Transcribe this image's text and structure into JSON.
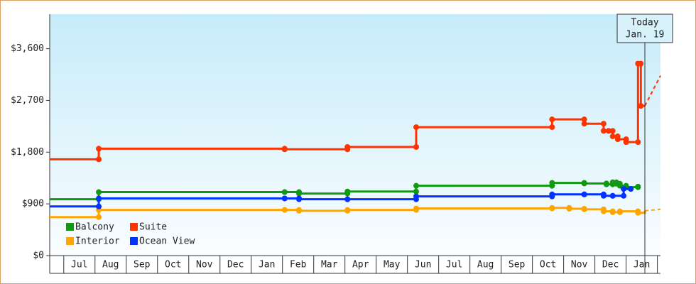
{
  "chart_data": {
    "type": "step-line",
    "today": {
      "label": "Today",
      "date": "Jan. 19",
      "x": 18.6
    },
    "xlim": [
      -0.45,
      19.1
    ],
    "xticks": [
      {
        "value": 0.5,
        "label": "Jul"
      },
      {
        "value": 1.5,
        "label": "Aug"
      },
      {
        "value": 2.5,
        "label": "Sep"
      },
      {
        "value": 3.5,
        "label": "Oct"
      },
      {
        "value": 4.5,
        "label": "Nov"
      },
      {
        "value": 5.5,
        "label": "Dec"
      },
      {
        "value": 6.5,
        "label": "Jan"
      },
      {
        "value": 7.5,
        "label": "Feb"
      },
      {
        "value": 8.5,
        "label": "Mar"
      },
      {
        "value": 9.5,
        "label": "Apr"
      },
      {
        "value": 10.5,
        "label": "May"
      },
      {
        "value": 11.5,
        "label": "Jun"
      },
      {
        "value": 12.5,
        "label": "Jul"
      },
      {
        "value": 13.5,
        "label": "Aug"
      },
      {
        "value": 14.5,
        "label": "Sep"
      },
      {
        "value": 15.5,
        "label": "Oct"
      },
      {
        "value": 16.5,
        "label": "Nov"
      },
      {
        "value": 17.5,
        "label": "Dec"
      },
      {
        "value": 18.5,
        "label": "Jan"
      }
    ],
    "ylim": [
      0,
      4200
    ],
    "yticks": [
      {
        "value": 0,
        "label": "$0"
      },
      {
        "value": 900,
        "label": "$900"
      },
      {
        "value": 1800,
        "label": "$1,800"
      },
      {
        "value": 2700,
        "label": "$2,700"
      },
      {
        "value": 3600,
        "label": "$3,600"
      }
    ],
    "series": [
      {
        "name": "Balcony",
        "color": "#119911",
        "x": [
          -0.45,
          1.12,
          7.07,
          7.53,
          9.08,
          11.28,
          15.63,
          16.66,
          17.37,
          17.57,
          17.69,
          17.8,
          18.0,
          18.38
        ],
        "values": [
          980,
          1105,
          1105,
          1080,
          1115,
          1215,
          1265,
          1255,
          1240,
          1275,
          1250,
          1215,
          1190,
          1200
        ]
      },
      {
        "name": "Suite",
        "color": "#ff3300",
        "x": [
          -0.45,
          1.12,
          7.07,
          9.08,
          11.28,
          15.63,
          16.66,
          17.28,
          17.44,
          17.57,
          17.73,
          18.0,
          18.38,
          18.47,
          18.6
        ],
        "values": [
          1675,
          1860,
          1850,
          1890,
          2235,
          2370,
          2295,
          2170,
          2170,
          2075,
          2025,
          1975,
          3340,
          2605,
          2605
        ],
        "projection": {
          "x": [
            18.6,
            19.1
          ],
          "values": [
            2605,
            3130
          ]
        }
      },
      {
        "name": "Interior",
        "color": "#ffa500",
        "x": [
          -0.45,
          1.12,
          7.07,
          7.53,
          9.08,
          11.28,
          15.63,
          16.18,
          16.66,
          17.28,
          17.57,
          17.8,
          18.38,
          18.6
        ],
        "values": [
          670,
          795,
          795,
          780,
          795,
          820,
          830,
          815,
          805,
          770,
          755,
          770,
          745,
          780
        ],
        "projection": {
          "x": [
            18.6,
            19.1
          ],
          "values": [
            780,
            805
          ]
        }
      },
      {
        "name": "Ocean View",
        "color": "#0033ff",
        "x": [
          -0.45,
          1.12,
          7.07,
          7.53,
          9.08,
          11.28,
          15.63,
          16.66,
          17.28,
          17.57,
          17.92,
          18.15
        ],
        "values": [
          855,
          995,
          995,
          980,
          980,
          1030,
          1065,
          1065,
          1040,
          1040,
          1160,
          1160
        ]
      }
    ]
  }
}
